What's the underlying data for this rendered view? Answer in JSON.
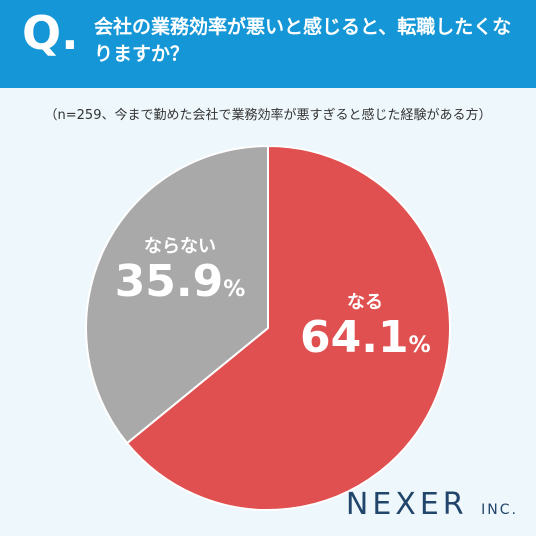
{
  "header": {
    "q_mark": "Q.",
    "question": "会社の業務効率が悪いと感じると、転職したくなりますか？"
  },
  "subtitle": "（n=259、今まで勤めた会社で業務効率が悪すぎると感じた経験がある方）",
  "chart_data": {
    "type": "pie",
    "slices": [
      {
        "label": "なる",
        "value": 64.1,
        "color": "#e05050"
      },
      {
        "label": "ならない",
        "value": 35.9,
        "color": "#a9a9a9"
      }
    ],
    "percent_unit": "%"
  },
  "logo": {
    "main": "NEXER",
    "suffix": "INC."
  }
}
